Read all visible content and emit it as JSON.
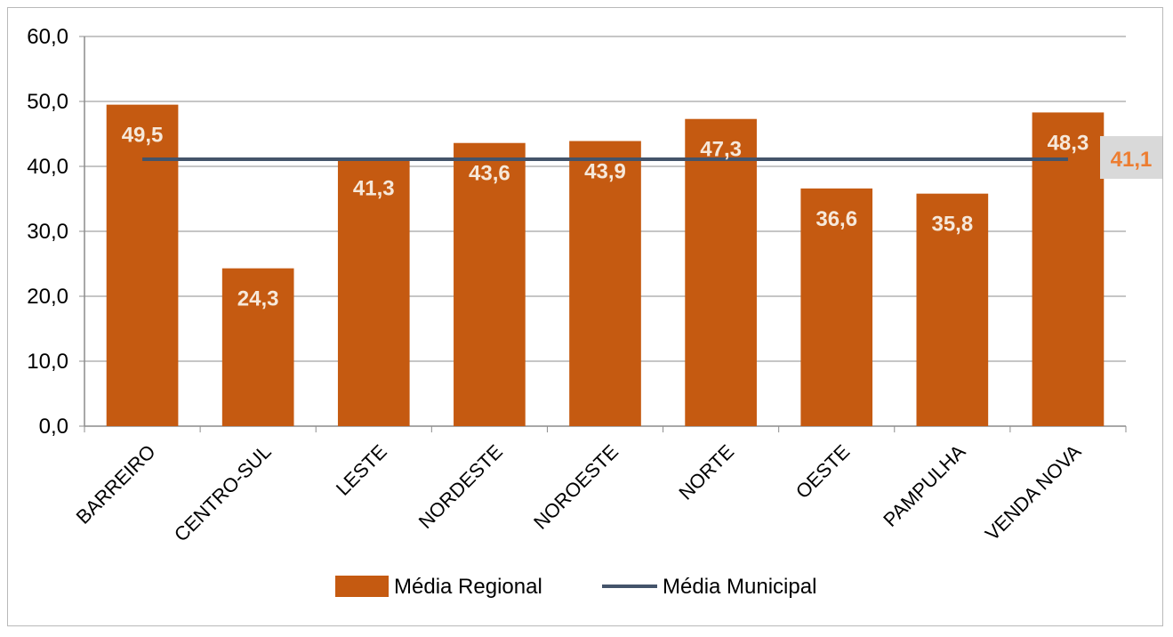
{
  "chart_data": {
    "type": "bar",
    "categories": [
      "BARREIRO",
      "CENTRO-SUL",
      "LESTE",
      "NORDESTE",
      "NOROESTE",
      "NORTE",
      "OESTE",
      "PAMPULHA",
      "VENDA NOVA"
    ],
    "series": [
      {
        "name": "Média Regional",
        "type": "bar",
        "values": [
          49.5,
          24.3,
          41.3,
          43.6,
          43.9,
          47.3,
          36.6,
          35.8,
          48.3
        ],
        "labels": [
          "49,5",
          "24,3",
          "41,3",
          "43,6",
          "43,9",
          "47,3",
          "36,6",
          "35,8",
          "48,3"
        ],
        "color": "#c55a11"
      },
      {
        "name": "Média Municipal",
        "type": "line",
        "value": 41.1,
        "label": "41,1",
        "color": "#44546a",
        "label_color": "#ed7d31",
        "label_background": "#d9d9d9"
      }
    ],
    "y_ticks": [
      {
        "value": 0,
        "label": "0,0"
      },
      {
        "value": 10,
        "label": "10,0"
      },
      {
        "value": 20,
        "label": "20,0"
      },
      {
        "value": 30,
        "label": "30,0"
      },
      {
        "value": 40,
        "label": "40,0"
      },
      {
        "value": 50,
        "label": "50,0"
      },
      {
        "value": 60,
        "label": "60,0"
      }
    ],
    "ylim": [
      0,
      60
    ],
    "grid": true,
    "legend_position": "bottom",
    "title": "",
    "xlabel": "",
    "ylabel": ""
  }
}
